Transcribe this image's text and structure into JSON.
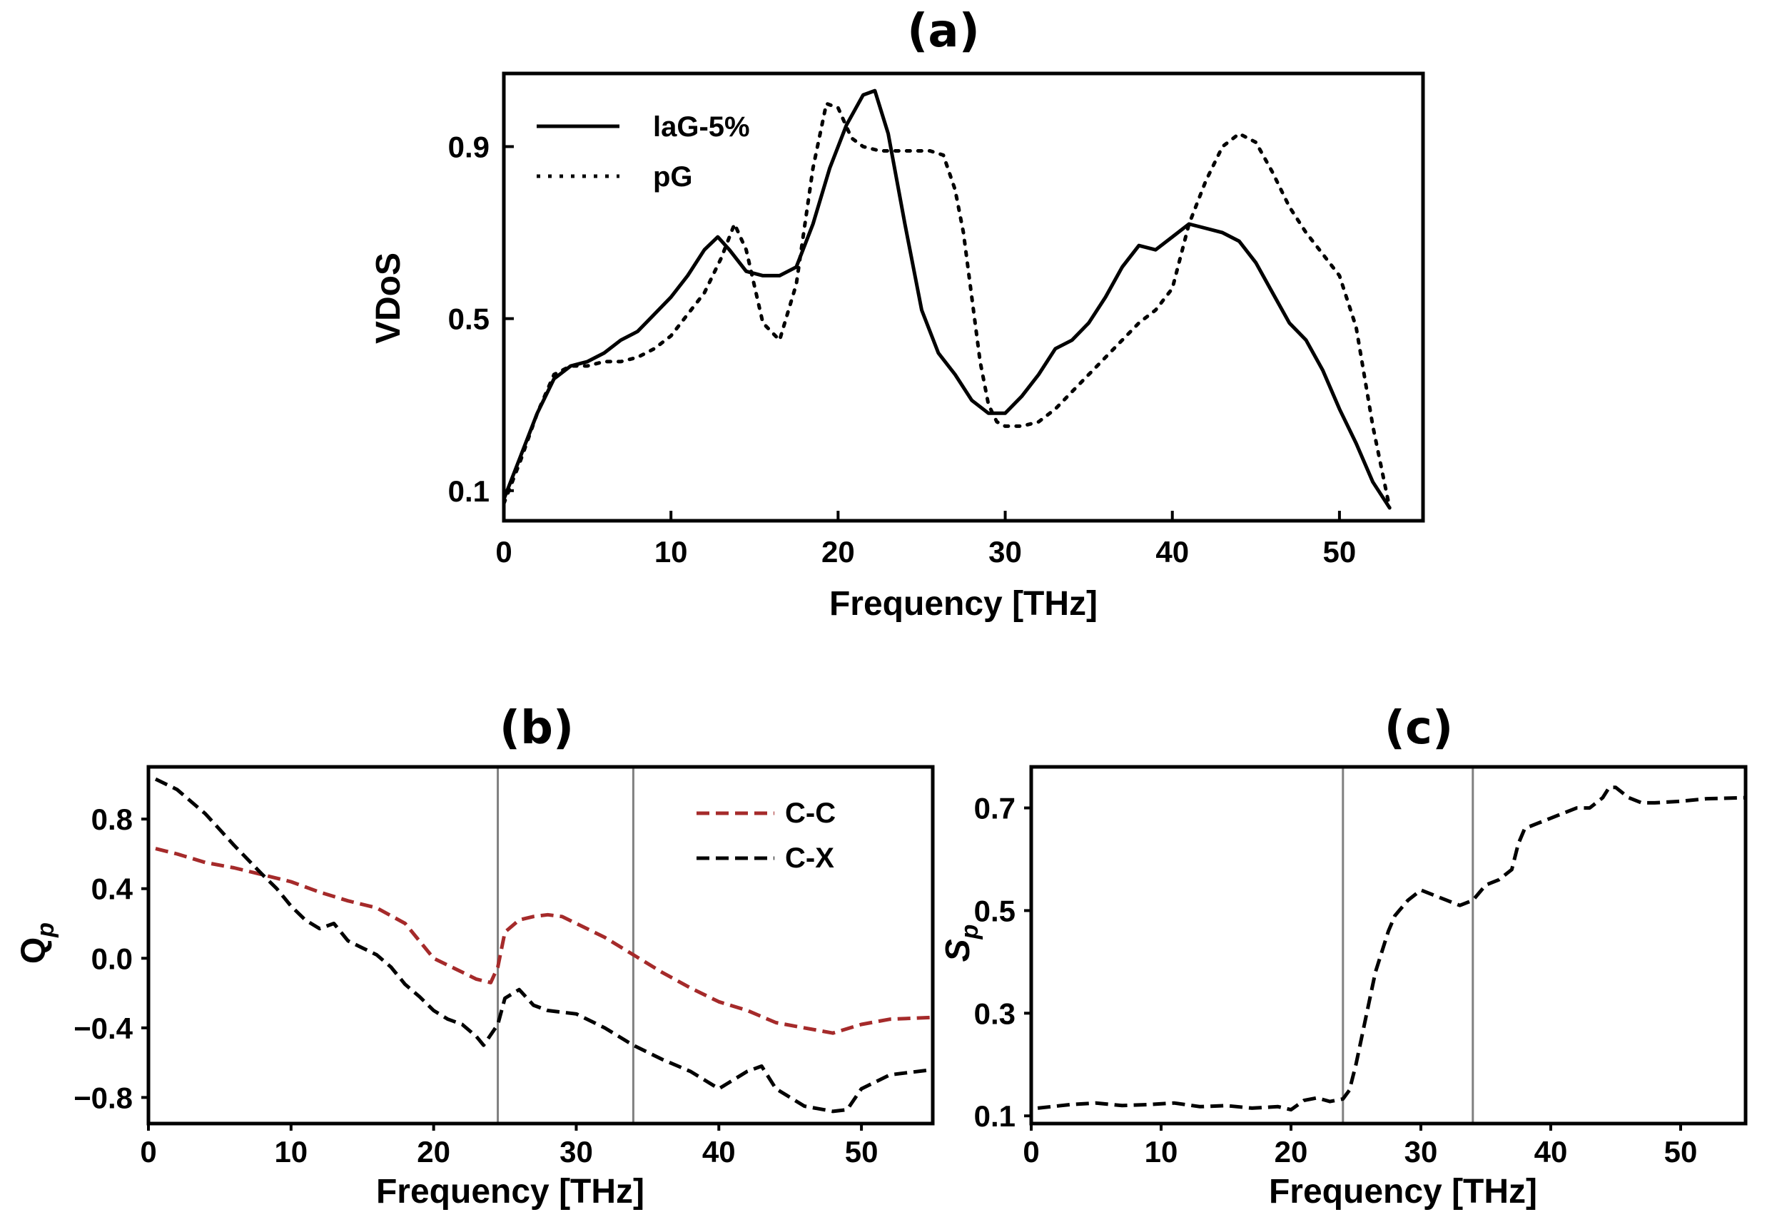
{
  "chart_data": [
    {
      "panel": "(a)",
      "type": "line",
      "title": "(a)",
      "xlabel": "Frequency [THz]",
      "ylabel": "VDoS",
      "xlim": [
        0,
        55
      ],
      "ylim": [
        0.03,
        1.07
      ],
      "xticks": [
        0,
        10,
        20,
        30,
        40,
        50
      ],
      "yticks": [
        0.1,
        0.5,
        0.9
      ],
      "ytick_labels": [
        "0.1",
        "0.5",
        "0.9"
      ],
      "legend_position": "top-left",
      "series": [
        {
          "name": "laG-5%",
          "style": "solid",
          "color": "#000000",
          "x": [
            0,
            1,
            2,
            3,
            4,
            5,
            6,
            7,
            8,
            9,
            10,
            11,
            12,
            12.8,
            13.5,
            14.5,
            15.5,
            16.5,
            17.5,
            18.5,
            19.5,
            20.5,
            21.5,
            22.2,
            23,
            24,
            25,
            26,
            27,
            28,
            29,
            30,
            31,
            32,
            33,
            34,
            35,
            36,
            37,
            38,
            39,
            40,
            41,
            42,
            43,
            44,
            45,
            46,
            47,
            48,
            49,
            50,
            51,
            52,
            53
          ],
          "y": [
            0.08,
            0.18,
            0.28,
            0.36,
            0.39,
            0.4,
            0.42,
            0.45,
            0.47,
            0.51,
            0.55,
            0.6,
            0.66,
            0.69,
            0.66,
            0.61,
            0.6,
            0.6,
            0.62,
            0.72,
            0.85,
            0.95,
            1.02,
            1.03,
            0.93,
            0.72,
            0.52,
            0.42,
            0.37,
            0.31,
            0.28,
            0.28,
            0.32,
            0.37,
            0.43,
            0.45,
            0.49,
            0.55,
            0.62,
            0.67,
            0.66,
            0.69,
            0.72,
            0.71,
            0.7,
            0.68,
            0.63,
            0.56,
            0.49,
            0.45,
            0.38,
            0.29,
            0.21,
            0.12,
            0.06
          ]
        },
        {
          "name": "pG",
          "style": "dotted",
          "color": "#000000",
          "x": [
            0,
            1,
            2,
            3,
            4,
            5,
            6,
            7,
            8,
            9,
            10,
            11,
            12,
            13,
            13.8,
            14.5,
            15.5,
            16.5,
            17.5,
            18.5,
            19.3,
            20,
            20.8,
            21.5,
            22.5,
            23.5,
            24.5,
            25.5,
            26.3,
            27,
            27.5,
            28,
            28.5,
            29,
            29.5,
            30,
            31,
            32,
            33,
            34,
            35,
            36,
            37,
            38,
            39,
            40,
            41,
            42,
            43,
            44,
            45,
            46,
            47,
            48,
            49,
            50,
            51,
            52,
            53
          ],
          "y": [
            0.07,
            0.17,
            0.28,
            0.37,
            0.39,
            0.39,
            0.4,
            0.4,
            0.41,
            0.43,
            0.46,
            0.51,
            0.56,
            0.64,
            0.72,
            0.66,
            0.49,
            0.45,
            0.58,
            0.85,
            1.0,
            0.99,
            0.92,
            0.9,
            0.89,
            0.89,
            0.89,
            0.89,
            0.88,
            0.8,
            0.7,
            0.55,
            0.4,
            0.3,
            0.26,
            0.25,
            0.25,
            0.26,
            0.29,
            0.33,
            0.37,
            0.41,
            0.45,
            0.49,
            0.52,
            0.57,
            0.72,
            0.82,
            0.9,
            0.93,
            0.91,
            0.84,
            0.76,
            0.7,
            0.65,
            0.6,
            0.48,
            0.25,
            0.06
          ]
        }
      ]
    },
    {
      "panel": "(b)",
      "type": "line",
      "title": "(b)",
      "xlabel": "Frequency [THz]",
      "ylabel": "Q_p",
      "ylabel_main": "Q",
      "ylabel_sub": "p",
      "xlim": [
        0,
        55
      ],
      "ylim": [
        -0.95,
        1.1
      ],
      "xticks": [
        0,
        10,
        20,
        30,
        40,
        50
      ],
      "yticks": [
        -0.8,
        -0.4,
        0.0,
        0.4,
        0.8
      ],
      "ytick_labels": [
        "−0.8",
        "−0.4",
        "0.0",
        "0.4",
        "0.8"
      ],
      "vlines": [
        24.5,
        34
      ],
      "legend_position": "top-right",
      "series": [
        {
          "name": "C-C",
          "style": "dashed",
          "color": "#a52a2a",
          "x": [
            0.5,
            2,
            4,
            6,
            8,
            10,
            12,
            14,
            16,
            18,
            20,
            22,
            23,
            24,
            24.5,
            25,
            26,
            27,
            28,
            29,
            30,
            32,
            34,
            36,
            38,
            40,
            42,
            44,
            46,
            48,
            50,
            52,
            55
          ],
          "y": [
            0.63,
            0.6,
            0.55,
            0.52,
            0.48,
            0.44,
            0.38,
            0.33,
            0.29,
            0.2,
            0.0,
            -0.08,
            -0.12,
            -0.14,
            -0.05,
            0.15,
            0.22,
            0.24,
            0.25,
            0.24,
            0.2,
            0.12,
            0.02,
            -0.08,
            -0.17,
            -0.25,
            -0.3,
            -0.37,
            -0.4,
            -0.43,
            -0.38,
            -0.35,
            -0.34
          ]
        },
        {
          "name": "C-X",
          "style": "dashed",
          "color": "#000000",
          "x": [
            0.5,
            2,
            4,
            6,
            8,
            9,
            10,
            11,
            12,
            13,
            14,
            15,
            16,
            17,
            18,
            19,
            20,
            21,
            22,
            23,
            23.5,
            24.5,
            25,
            26,
            27,
            28,
            30,
            32,
            34,
            36,
            38,
            39,
            40,
            42,
            43,
            44,
            46,
            48,
            49,
            50,
            52,
            55
          ],
          "y": [
            1.03,
            0.97,
            0.83,
            0.65,
            0.48,
            0.4,
            0.3,
            0.22,
            0.17,
            0.2,
            0.1,
            0.06,
            0.02,
            -0.05,
            -0.15,
            -0.22,
            -0.3,
            -0.35,
            -0.38,
            -0.45,
            -0.5,
            -0.38,
            -0.23,
            -0.18,
            -0.27,
            -0.3,
            -0.32,
            -0.4,
            -0.5,
            -0.58,
            -0.65,
            -0.7,
            -0.75,
            -0.65,
            -0.62,
            -0.75,
            -0.85,
            -0.88,
            -0.87,
            -0.75,
            -0.67,
            -0.64
          ]
        }
      ]
    },
    {
      "panel": "(c)",
      "type": "line",
      "title": "(c)",
      "xlabel": "Frequency [THz]",
      "ylabel": "S_p",
      "ylabel_main": "S",
      "ylabel_sub": "p",
      "xlim": [
        0,
        55
      ],
      "ylim": [
        0.085,
        0.78
      ],
      "xticks": [
        0,
        10,
        20,
        30,
        40,
        50
      ],
      "yticks": [
        0.1,
        0.3,
        0.5,
        0.7
      ],
      "ytick_labels": [
        "0.1",
        "0.3",
        "0.5",
        "0.7"
      ],
      "vlines": [
        24,
        34
      ],
      "series": [
        {
          "name": "",
          "style": "dashed",
          "color": "#000000",
          "x": [
            0.5,
            3,
            5,
            7,
            9,
            11,
            13,
            15,
            17,
            19,
            20,
            21,
            22,
            23,
            24,
            24.5,
            25,
            25.5,
            26,
            26.5,
            27,
            27.5,
            28,
            29,
            30,
            31,
            32,
            33,
            34,
            35,
            36,
            37,
            37.5,
            38,
            39,
            40,
            41,
            42,
            43,
            44,
            44.5,
            45,
            46,
            47,
            48,
            50,
            52,
            55
          ],
          "y": [
            0.115,
            0.122,
            0.125,
            0.12,
            0.122,
            0.125,
            0.118,
            0.12,
            0.115,
            0.118,
            0.112,
            0.13,
            0.135,
            0.128,
            0.133,
            0.15,
            0.2,
            0.26,
            0.32,
            0.38,
            0.42,
            0.46,
            0.49,
            0.52,
            0.54,
            0.53,
            0.52,
            0.51,
            0.52,
            0.55,
            0.56,
            0.58,
            0.63,
            0.66,
            0.67,
            0.68,
            0.69,
            0.7,
            0.7,
            0.72,
            0.74,
            0.74,
            0.72,
            0.71,
            0.71,
            0.713,
            0.718,
            0.72
          ]
        }
      ]
    }
  ]
}
